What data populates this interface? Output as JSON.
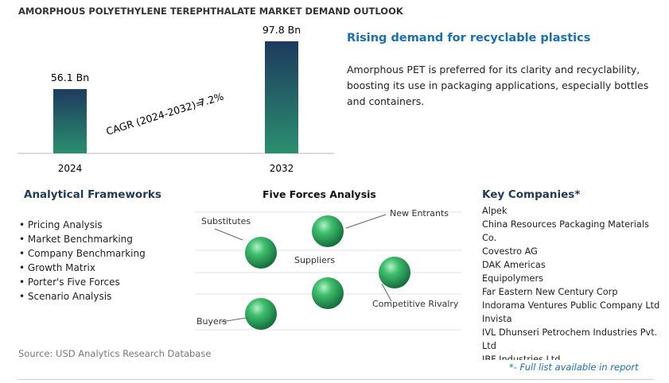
{
  "title": "AMORPHOUS POLYETHYLENE TEREPHTHALATE MARKET DEMAND OUTLOOK",
  "chart_data": {
    "type": "bar",
    "categories": [
      "2024",
      "2032"
    ],
    "values": [
      56.1,
      97.8
    ],
    "value_labels": [
      "56.1 Bn",
      "97.8 Bn"
    ],
    "annotation": {
      "label": "CAGR (2024-2032)=",
      "value": "7.2%"
    }
  },
  "highlight": {
    "heading": "Rising demand for recyclable plastics",
    "text": "Amorphous PET is preferred for its clarity and recyclability, boosting its use in packaging applications, especially bottles and containers."
  },
  "frameworks": {
    "heading": "Analytical Frameworks",
    "items": [
      "Pricing Analysis",
      "Market Benchmarking",
      "Company Benchmarking",
      "Growth Matrix",
      "Porter's Five Forces",
      "Scenario Analysis"
    ]
  },
  "five_forces": {
    "heading": "Five Forces Analysis",
    "forces": [
      "Substitutes",
      "New Entrants",
      "Suppliers",
      "Competitive Rivalry",
      "Buyers"
    ]
  },
  "companies": {
    "heading": "Key Companies*",
    "items": [
      "Alpek",
      "China Resources Packaging Materials Co.",
      "Covestro AG",
      "DAK Americas",
      "Equipolymers",
      "Far Eastern New Century Corp",
      "Indorama Ventures Public Company Ltd",
      "Invista",
      "IVL Dhunseri Petrochem Industries Pvt. Ltd",
      "JBF Industries Ltd"
    ],
    "note": "*- Full list available in report"
  },
  "source": "Source: USD Analytics Research Database"
}
